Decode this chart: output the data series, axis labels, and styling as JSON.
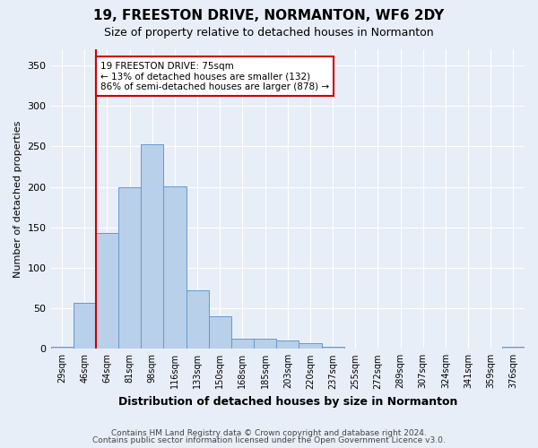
{
  "title": "19, FREESTON DRIVE, NORMANTON, WF6 2DY",
  "subtitle": "Size of property relative to detached houses in Normanton",
  "xlabel": "Distribution of detached houses by size in Normanton",
  "ylabel": "Number of detached properties",
  "categories": [
    "29sqm",
    "46sqm",
    "64sqm",
    "81sqm",
    "98sqm",
    "116sqm",
    "133sqm",
    "150sqm",
    "168sqm",
    "185sqm",
    "203sqm",
    "220sqm",
    "237sqm",
    "255sqm",
    "272sqm",
    "289sqm",
    "307sqm",
    "324sqm",
    "341sqm",
    "359sqm",
    "376sqm"
  ],
  "values": [
    3,
    57,
    143,
    200,
    253,
    201,
    72,
    40,
    13,
    13,
    10,
    7,
    3,
    0,
    0,
    0,
    0,
    0,
    0,
    0,
    3
  ],
  "bar_color": "#b8d0ea",
  "bar_edge_color": "#6699cc",
  "property_line_color": "#cc0000",
  "annotation_text": "19 FREESTON DRIVE: 75sqm\n← 13% of detached houses are smaller (132)\n86% of semi-detached houses are larger (878) →",
  "annotation_box_color": "#ffffff",
  "annotation_box_edge_color": "#cc0000",
  "ylim": [
    0,
    370
  ],
  "yticks": [
    0,
    50,
    100,
    150,
    200,
    250,
    300,
    350
  ],
  "footer1": "Contains HM Land Registry data © Crown copyright and database right 2024.",
  "footer2": "Contains public sector information licensed under the Open Government Licence v3.0.",
  "background_color": "#e8eef8",
  "grid_color": "#ffffff"
}
